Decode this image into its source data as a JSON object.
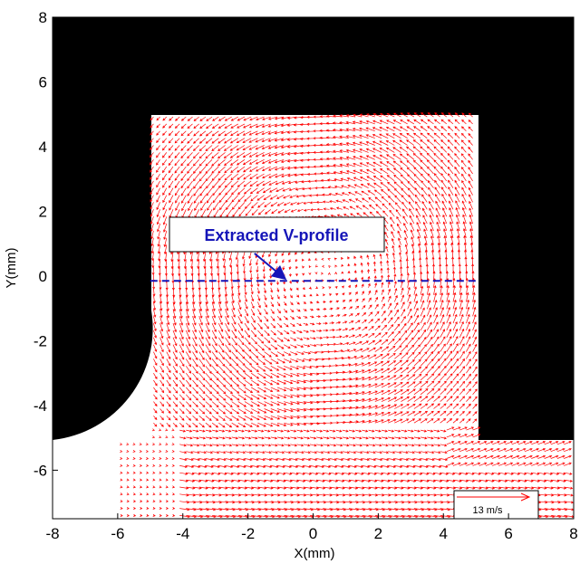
{
  "chart_data": {
    "type": "vector-field",
    "xlabel": "X(mm)",
    "ylabel": "Y(mm)",
    "xlim": [
      -8,
      8
    ],
    "ylim": [
      -7.5,
      8
    ],
    "x_ticks": [
      "-8",
      "-6",
      "-4",
      "-2",
      "0",
      "2",
      "4",
      "6",
      "8"
    ],
    "y_ticks": [
      "-6",
      "-4",
      "-2",
      "0",
      "2",
      "4",
      "6",
      "8"
    ],
    "x_tick_values": [
      -8,
      -6,
      -4,
      -2,
      0,
      2,
      4,
      6,
      8
    ],
    "y_tick_values": [
      -6,
      -4,
      -2,
      0,
      2,
      4,
      6,
      8
    ],
    "grid": false,
    "field": {
      "vector_color": "#ff0000",
      "vortex_center": [
        0.3,
        0.1
      ],
      "vortex_sense": "counter-clockwise",
      "region": "cavity x in [-5, 5], y in [-5, 5] plus channel y < -5"
    },
    "profile_line": {
      "label": "Extracted V-profile",
      "y": -0.15,
      "x_range": [
        -5,
        5
      ],
      "color": "#1515b8",
      "arrow_from": [
        -1.8,
        0.7
      ],
      "arrow_to": [
        -0.9,
        -0.05
      ]
    },
    "scale_vector": {
      "label": "13 m/s",
      "value": 13,
      "units": "m/s"
    },
    "colors": {
      "solid_wall": "#000000",
      "vectors": "#ff0000",
      "annotation": "#1515b8"
    }
  }
}
